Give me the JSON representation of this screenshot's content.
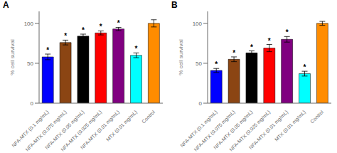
{
  "chart_data": [
    {
      "type": "bar",
      "title": "A",
      "ylabel": "% cell survival",
      "categories": [
        "NFA-MTX (0.1 mg/mL)",
        "NFA-MTX (0.075 mg/mL)",
        "NFA-MTX (0.05 mg/mL)",
        "NFA-MTX (0.025 mg/mL)",
        "NFA-MTX (0.01 mg/mL)",
        "MTX (0.01 mg/mL)",
        "Control"
      ],
      "values": [
        58,
        76,
        84,
        88,
        93,
        60,
        100
      ],
      "errors": [
        3.5,
        3.0,
        2.5,
        2.5,
        2.0,
        3.0,
        4.5
      ],
      "annotations": [
        "*",
        "*",
        "*",
        "*",
        "*",
        "*",
        null
      ],
      "colors": [
        "#0000ff",
        "#8B4513",
        "#000000",
        "#ff0000",
        "#800080",
        "#00ffff",
        "#ff8c00"
      ],
      "ylim": [
        0,
        115
      ],
      "yticks": [
        0,
        50,
        100
      ],
      "grid": false
    },
    {
      "type": "bar",
      "title": "B",
      "ylabel": "% cell survival",
      "categories": [
        "NFA-MTX (0.1 mg/mL)",
        "NFA-MTX (0.075 mg/mL)",
        "NFA-MTX (0.05 mg/mL)",
        "NFA-MTX (0.025 mg/mL)",
        "NFA-MTX (0.01 mg/mL)",
        "MTX (0.01 mg/mL)",
        "Control"
      ],
      "values": [
        41,
        55,
        63,
        69,
        80,
        37,
        100
      ],
      "errors": [
        2.5,
        3.0,
        2.5,
        4.5,
        3.5,
        3.0,
        2.5
      ],
      "annotations": [
        "*",
        "*",
        "*",
        "*",
        "*",
        "*",
        null
      ],
      "colors": [
        "#0000ff",
        "#8B4513",
        "#000000",
        "#ff0000",
        "#800080",
        "#00ffff",
        "#ff8c00"
      ],
      "ylim": [
        0,
        115
      ],
      "yticks": [
        0,
        50,
        100
      ],
      "grid": false
    }
  ]
}
